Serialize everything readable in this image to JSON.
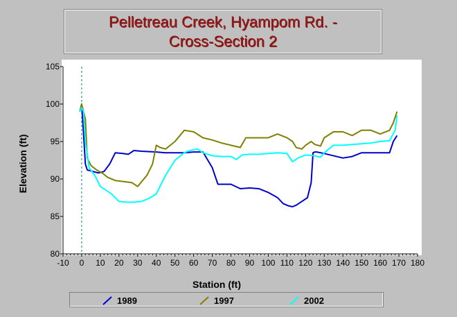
{
  "title": {
    "line1": "Pelletreau Creek, Hyampom Rd. -",
    "line2": "Cross-Section 2"
  },
  "chart_data": {
    "type": "line",
    "title": "Pelletreau Creek, Hyampom Rd. - Cross-Section 2",
    "xlabel": "Station (ft)",
    "ylabel": "Elevation (ft)",
    "xlim": [
      -10,
      180
    ],
    "ylim": [
      80,
      105
    ],
    "xticks": [
      -10,
      0,
      10,
      20,
      30,
      40,
      50,
      60,
      70,
      80,
      90,
      100,
      110,
      120,
      130,
      140,
      150,
      160,
      170,
      180
    ],
    "yticks": [
      80,
      85,
      90,
      95,
      100,
      105
    ],
    "grid": false,
    "legend_position": "bottom",
    "reference_line_x": 0,
    "series": [
      {
        "name": "1989",
        "color": "#0000cc",
        "x": [
          -1,
          0,
          0.5,
          2,
          3,
          6,
          9,
          12,
          15,
          18,
          22,
          25,
          28,
          32,
          40,
          45,
          50,
          55,
          60,
          65,
          70,
          73,
          76,
          80,
          85,
          90,
          95,
          100,
          105,
          108,
          111,
          113,
          115,
          118,
          121,
          123,
          124,
          125,
          126,
          130,
          140,
          145,
          150,
          155,
          160,
          165,
          167,
          169
        ],
        "y": [
          99,
          100,
          98,
          92,
          91.2,
          91,
          90.8,
          91,
          92,
          93.5,
          93.4,
          93.3,
          93.8,
          93.7,
          93.6,
          93.5,
          93.5,
          93.5,
          93.6,
          93.6,
          91.5,
          89.3,
          89.3,
          89.3,
          88.7,
          88.8,
          88.7,
          88.2,
          87.5,
          86.7,
          86.4,
          86.3,
          86.5,
          87,
          87.5,
          89.5,
          93.5,
          93.6,
          93.6,
          93.4,
          92.8,
          93,
          93.5,
          93.5,
          93.5,
          93.5,
          95,
          95.8
        ]
      },
      {
        "name": "1997",
        "color": "#808000",
        "x": [
          -1,
          0,
          1,
          2,
          3,
          5,
          8,
          11,
          14,
          18,
          21,
          24,
          27,
          30,
          35,
          38,
          40,
          42,
          45,
          50,
          55,
          60,
          65,
          70,
          75,
          80,
          85,
          88,
          93,
          100,
          105,
          110,
          113,
          115,
          118,
          120,
          123,
          125,
          128,
          130,
          135,
          140,
          145,
          150,
          155,
          160,
          165,
          167,
          169
        ],
        "y": [
          99,
          100,
          99,
          98,
          92.8,
          91.8,
          91.2,
          90.8,
          90.2,
          89.8,
          89.7,
          89.6,
          89.5,
          89,
          90.5,
          92,
          94.5,
          94.2,
          94,
          95,
          96.5,
          96.3,
          95.5,
          95.2,
          94.8,
          94.5,
          94.2,
          95.5,
          95.5,
          95.5,
          96,
          95.5,
          95,
          94.2,
          94,
          94.5,
          95,
          94.6,
          94.4,
          95.5,
          96.3,
          96.3,
          95.8,
          96.5,
          96.5,
          96,
          96.5,
          97.5,
          99
        ]
      },
      {
        "name": "2002",
        "color": "#00ffff",
        "x": [
          -1,
          0,
          1,
          2,
          4,
          7,
          10,
          13,
          16,
          20,
          24,
          28,
          32,
          36,
          40,
          45,
          50,
          55,
          58,
          62,
          65,
          70,
          75,
          80,
          83,
          86,
          90,
          95,
          100,
          105,
          110,
          113,
          116,
          120,
          125,
          128,
          130,
          135,
          140,
          145,
          150,
          155,
          160,
          165,
          168,
          169
        ],
        "y": [
          99,
          99.5,
          99,
          95,
          91.5,
          90.5,
          89,
          88.5,
          88,
          87,
          86.9,
          86.9,
          87,
          87.4,
          88,
          90.5,
          92.5,
          93.5,
          93.8,
          94,
          93.5,
          93.1,
          93,
          93,
          92.6,
          93.2,
          93.3,
          93.3,
          93.4,
          93.5,
          93.4,
          92.3,
          92.8,
          93.2,
          93.1,
          92.9,
          93.5,
          94.5,
          94.5,
          94.6,
          94.7,
          94.8,
          95,
          95.1,
          96.5,
          98.5
        ]
      }
    ]
  }
}
